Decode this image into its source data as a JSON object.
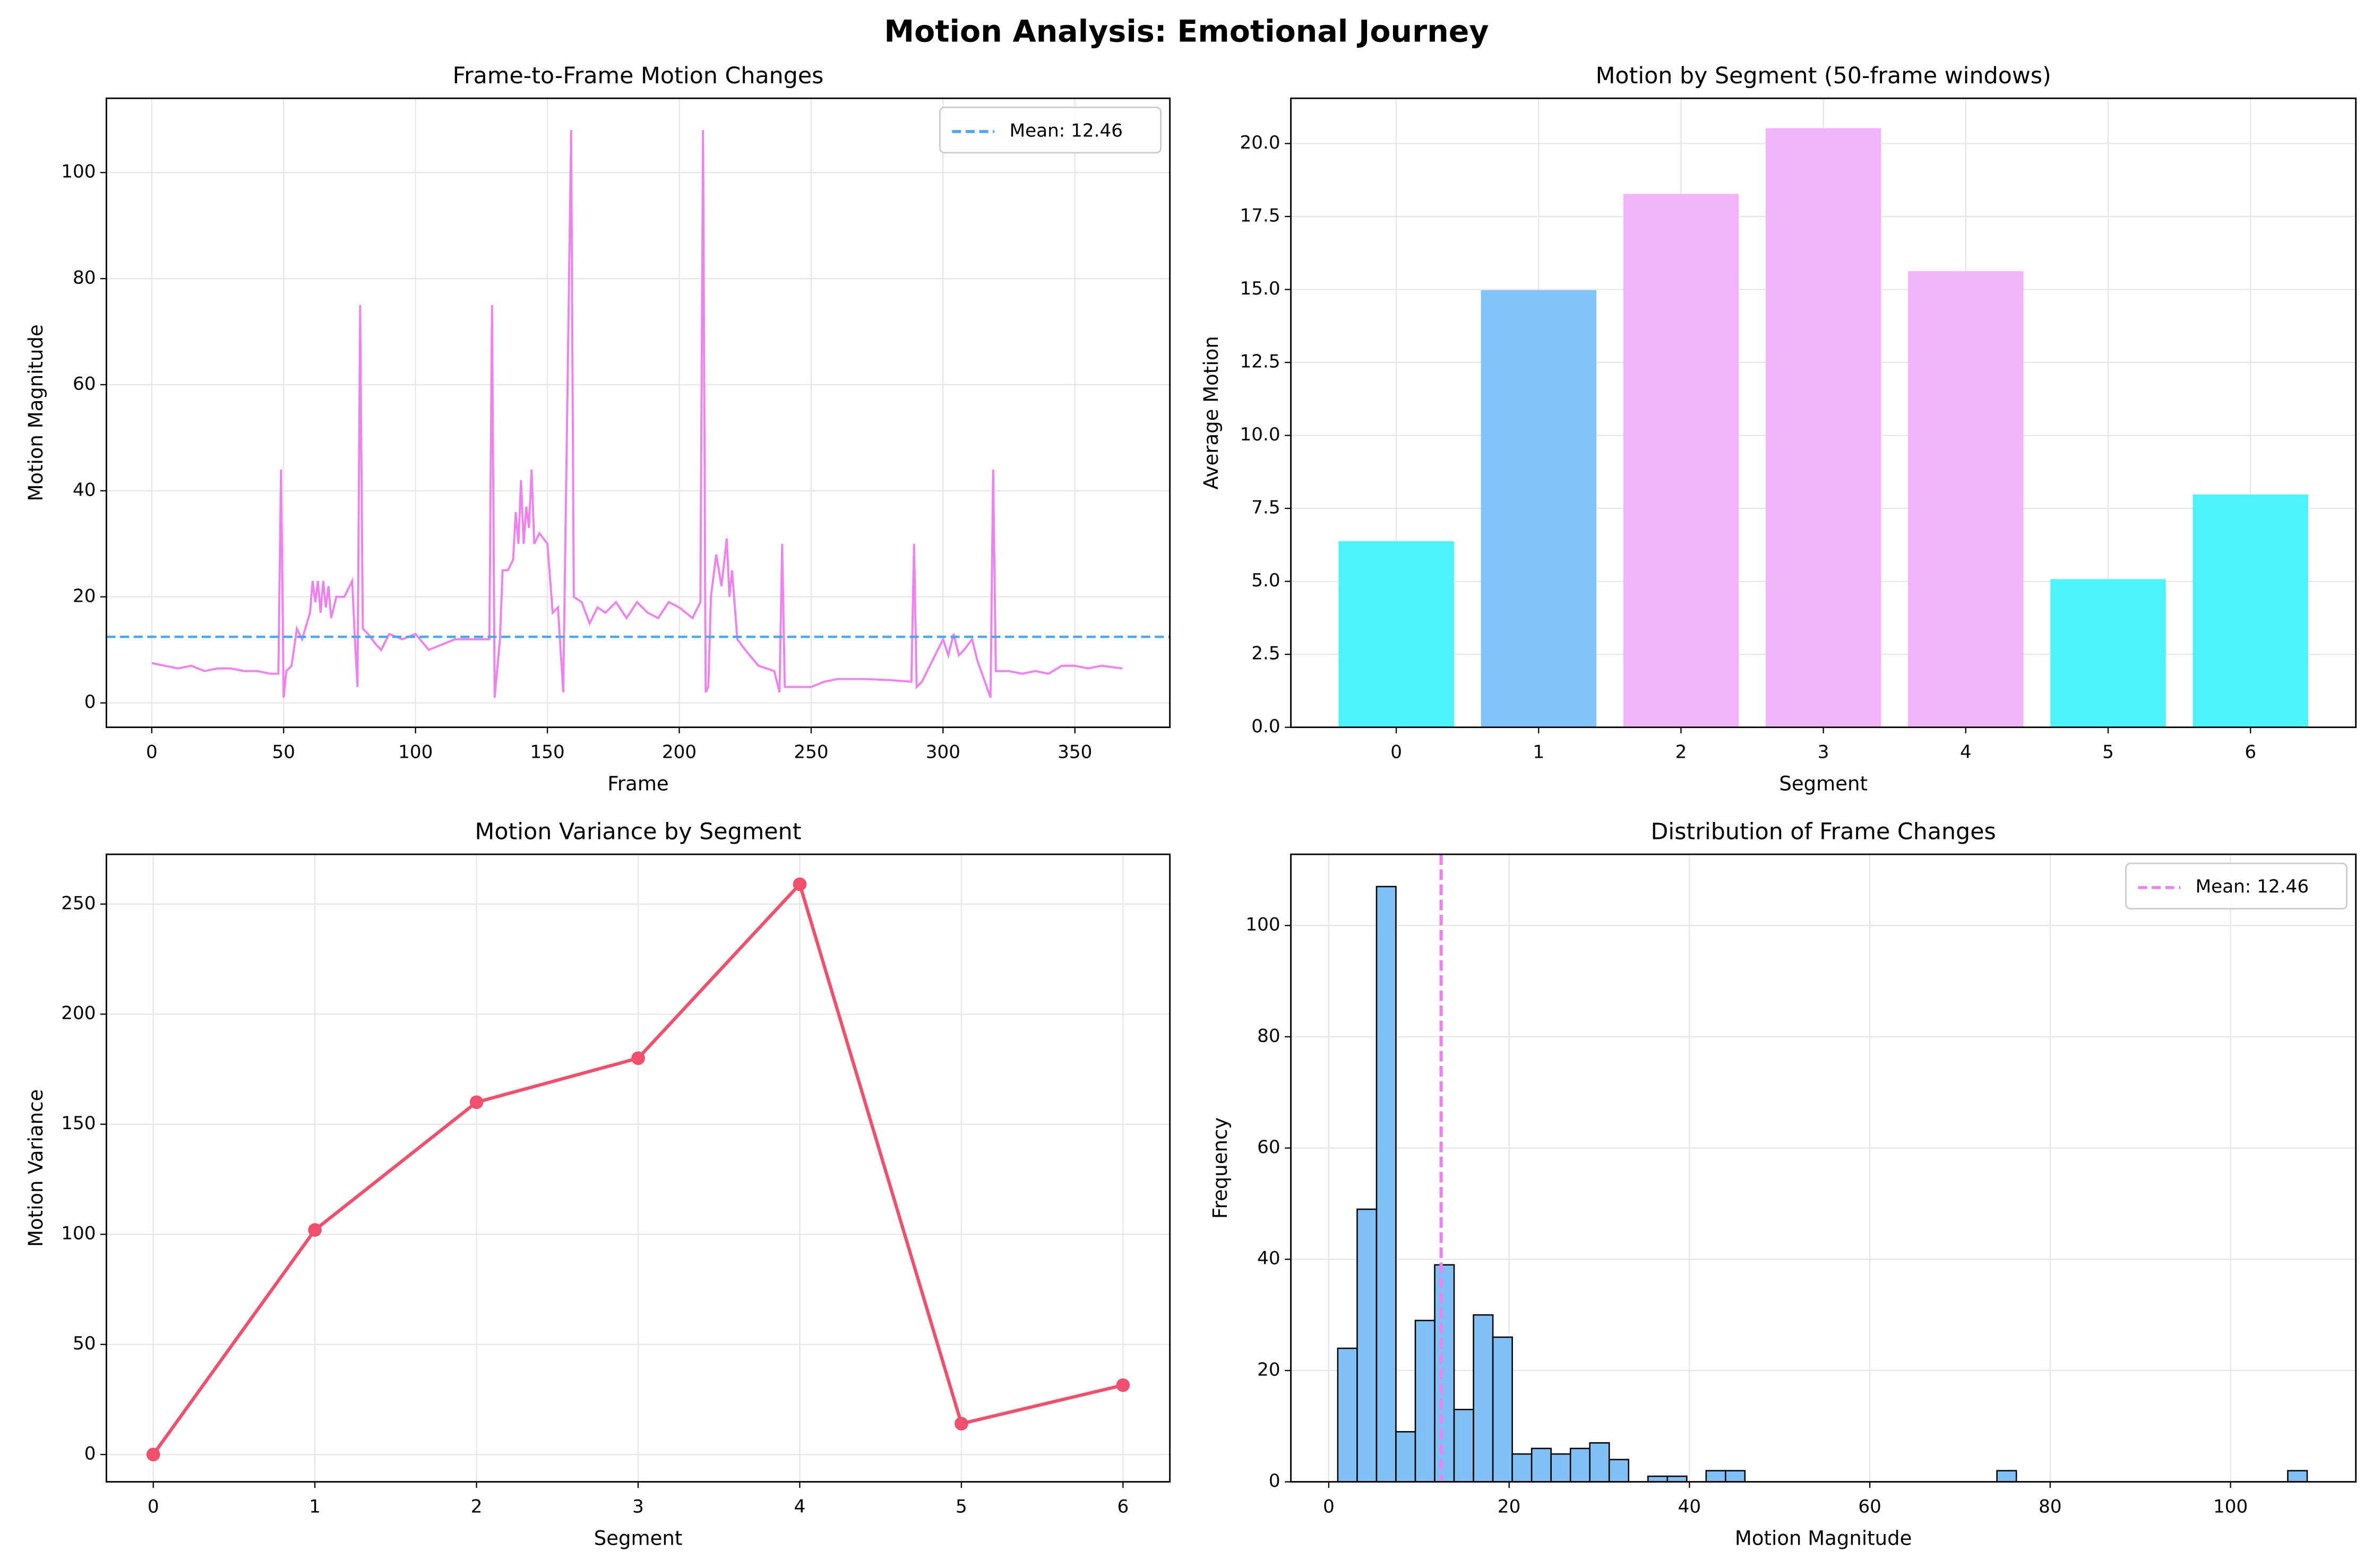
{
  "title": "Motion Analysis: Emotional Journey",
  "chart_data": [
    {
      "type": "line",
      "title": "Frame-to-Frame Motion Changes",
      "xlabel": "Frame",
      "ylabel": "Motion Magnitude",
      "x": [
        0,
        5,
        10,
        15,
        20,
        25,
        30,
        35,
        40,
        45,
        48,
        49,
        50,
        51,
        53,
        55,
        57,
        60,
        61,
        62,
        63,
        64,
        65,
        66,
        67,
        68,
        70,
        73,
        76,
        77,
        78,
        79,
        80,
        82,
        85,
        87,
        90,
        95,
        100,
        105,
        110,
        115,
        120,
        125,
        128,
        129,
        130,
        132,
        133,
        135,
        137,
        138,
        139,
        140,
        141,
        142,
        143,
        144,
        145,
        147,
        150,
        152,
        154,
        156,
        159,
        160,
        163,
        166,
        169,
        172,
        176,
        180,
        184,
        188,
        192,
        196,
        200,
        205,
        208,
        209,
        210,
        211,
        212,
        214,
        216,
        218,
        219,
        220,
        222,
        225,
        230,
        236,
        238,
        239,
        240,
        245,
        250,
        255,
        260,
        270,
        280,
        288,
        289,
        290,
        292,
        295,
        298,
        300,
        302,
        304,
        306,
        308,
        311,
        313,
        318,
        319,
        320,
        325,
        330,
        335,
        340,
        345,
        350,
        355,
        360,
        368
      ],
      "series": [
        {
          "color": "#ee82ee",
          "values": [
            7.5,
            7,
            6.5,
            7,
            6,
            6.5,
            6.5,
            6,
            6,
            5.5,
            5.5,
            44,
            1,
            6,
            7,
            14,
            12,
            17,
            23,
            19,
            23,
            17,
            23,
            18,
            22,
            16,
            20,
            20,
            23,
            12,
            3,
            75,
            14,
            13,
            11,
            10,
            13,
            12,
            13,
            10,
            11,
            12,
            12,
            12,
            12,
            75,
            1,
            12,
            25,
            25,
            27,
            36,
            30,
            42,
            30,
            37,
            33,
            44,
            30,
            32,
            30,
            17,
            18,
            2,
            108,
            20,
            19,
            15,
            18,
            17,
            19,
            16,
            19,
            17,
            16,
            19,
            18,
            16,
            19,
            108,
            2,
            3,
            20,
            28,
            22,
            31,
            20,
            25,
            12,
            10,
            7,
            6,
            2,
            30,
            3,
            3,
            3,
            4,
            4.5,
            4.5,
            4.3,
            4,
            30,
            3,
            4,
            7,
            10,
            12,
            9,
            13,
            9,
            10,
            12,
            8,
            1,
            44,
            6,
            6,
            5.5,
            6,
            5.5,
            7,
            7,
            6.5,
            7,
            6.5
          ]
        }
      ],
      "hlines": [
        {
          "value": 12.46,
          "label": "Mean: 12.46",
          "color": "#4da6f0"
        }
      ],
      "legend": "upper right",
      "grid": true,
      "xlim": [
        -17.2,
        386
      ],
      "xticks": [
        0,
        50,
        100,
        150,
        200,
        250,
        300,
        350
      ],
      "ylim": [
        -4.6,
        114
      ],
      "yticks": [
        0,
        20,
        40,
        60,
        80,
        100
      ]
    },
    {
      "type": "bar",
      "title": "Motion by Segment (50-frame windows)",
      "xlabel": "Segment",
      "ylabel": "Average Motion",
      "categories": [
        "0",
        "1",
        "2",
        "3",
        "4",
        "5",
        "6"
      ],
      "values": [
        6.35,
        14.95,
        18.25,
        20.5,
        15.6,
        5.05,
        7.95
      ],
      "colors": [
        "#4cf4fa",
        "#80c4fa",
        "#f2b4fa",
        "#f2b4fa",
        "#f2b4fa",
        "#4cf4fa",
        "#4cf4fa"
      ],
      "grid": true,
      "xlim": [
        -0.74,
        6.74
      ],
      "ylim": [
        0,
        21.55
      ],
      "yticks": [
        {
          "value": 0,
          "label": "0.0"
        },
        2.5,
        {
          "value": 5,
          "label": "5.0"
        },
        7.5,
        {
          "value": 10,
          "label": "10.0"
        },
        12.5,
        {
          "value": 15,
          "label": "15.0"
        },
        17.5,
        {
          "value": 20,
          "label": "20.0"
        }
      ]
    },
    {
      "type": "line",
      "title": "Motion Variance by Segment",
      "xlabel": "Segment",
      "ylabel": "Motion Variance",
      "x": [
        0,
        1,
        2,
        3,
        4,
        5,
        6
      ],
      "series": [
        {
          "color": "#f0506e",
          "values": [
            0,
            102,
            160,
            180,
            259,
            14,
            31.5
          ]
        }
      ],
      "markers": true,
      "grid": true,
      "xlim": [
        -0.29,
        6.29
      ],
      "xticks": [
        0,
        1,
        2,
        3,
        4,
        5,
        6
      ],
      "ylim": [
        -12.4,
        272.6
      ],
      "yticks": [
        0,
        50,
        100,
        150,
        200,
        250
      ]
    },
    {
      "type": "histogram",
      "title": "Distribution of Frame Changes",
      "xlabel": "Motion Magnitude",
      "ylabel": "Frequency",
      "bins": [
        1,
        3.15,
        5.3,
        7.45,
        9.6,
        11.75,
        13.9,
        16.05,
        18.2,
        20.35,
        22.5,
        24.65,
        26.8,
        28.95,
        31.1,
        33.25,
        35.4,
        37.55,
        39.7,
        41.85,
        44,
        46.15,
        48.3,
        50.45,
        52.6,
        54.75,
        56.9,
        59.05,
        61.2,
        63.35,
        65.5,
        67.65,
        69.8,
        71.95,
        74.1,
        76.25,
        78.4,
        80.55,
        82.7,
        84.85,
        87,
        89.15,
        91.3,
        93.45,
        95.6,
        97.75,
        99.9,
        102.05,
        104.2,
        106.35,
        108.5
      ],
      "counts": [
        24,
        49,
        107,
        9,
        29,
        39,
        13,
        30,
        26,
        5,
        6,
        5,
        6,
        7,
        4,
        0,
        1,
        1,
        0,
        2,
        2,
        0,
        0,
        0,
        0,
        0,
        0,
        0,
        0,
        0,
        0,
        0,
        0,
        0,
        2,
        0,
        0,
        0,
        0,
        0,
        0,
        0,
        0,
        0,
        0,
        0,
        0,
        0,
        0,
        2
      ],
      "color": "#80c0f5",
      "vlines": [
        {
          "value": 12.46,
          "label": "Mean: 12.46",
          "color": "#ee82ee"
        }
      ],
      "legend": "upper right",
      "grid": true,
      "xlim": [
        -4.2,
        113.9
      ],
      "xticks": [
        0,
        20,
        40,
        60,
        80,
        100
      ],
      "ylim": [
        0,
        112.8
      ],
      "yticks": [
        0,
        20,
        40,
        60,
        80,
        100
      ]
    }
  ]
}
